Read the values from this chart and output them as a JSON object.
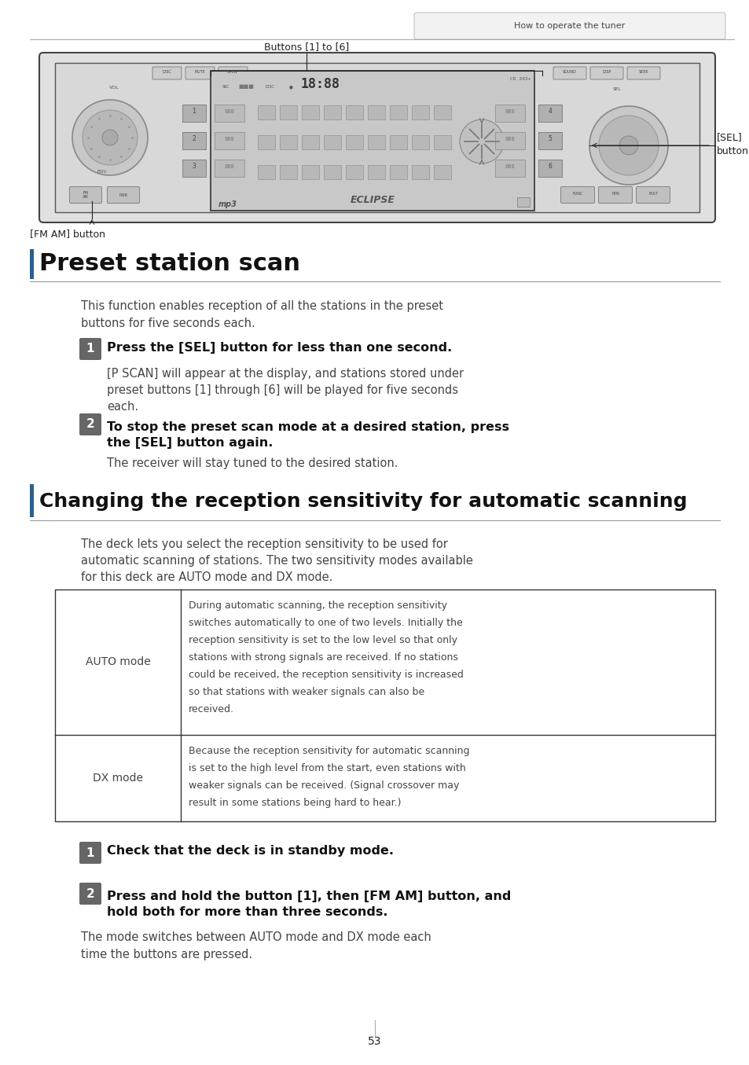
{
  "page_bg": "#ffffff",
  "header_text": "How to operate the tuner",
  "section1_title": "Preset station scan",
  "section1_intro_line1": "This function enables reception of all the stations in the preset",
  "section1_intro_line2": "buttons for five seconds each.",
  "step1_num": "1",
  "step1_bold": "Press the [SEL] button for less than one second.",
  "step1_body_line1": "[P SCAN] will appear at the display, and stations stored under",
  "step1_body_line2": "preset buttons [1] through [6] will be played for five seconds",
  "step1_body_line3": "each.",
  "step2_num": "2",
  "step2_bold_line1": "To stop the preset scan mode at a desired station, press",
  "step2_bold_line2": "the [SEL] button again.",
  "step2_body": "The receiver will stay tuned to the desired station.",
  "section2_title": "Changing the reception sensitivity for automatic scanning",
  "section2_intro_line1": "The deck lets you select the reception sensitivity to be used for",
  "section2_intro_line2": "automatic scanning of stations. The two sensitivity modes available",
  "section2_intro_line3": "for this deck are AUTO mode and DX mode.",
  "table_auto_label": "AUTO mode",
  "table_auto_line1": "During automatic scanning, the reception sensitivity",
  "table_auto_line2": "switches automatically to one of two levels. Initially the",
  "table_auto_line3": "reception sensitivity is set to the low level so that only",
  "table_auto_line4": "stations with strong signals are received. If no stations",
  "table_auto_line5": "could be received, the reception sensitivity is increased",
  "table_auto_line6": "so that stations with weaker signals can also be",
  "table_auto_line7": "received.",
  "table_dx_label": "DX mode",
  "table_dx_line1": "Because the reception sensitivity for automatic scanning",
  "table_dx_line2": "is set to the high level from the start, even stations with",
  "table_dx_line3": "weaker signals can be received. (Signal crossover may",
  "table_dx_line4": "result in some stations being hard to hear.)",
  "step3_num": "1",
  "step3_bold": "Check that the deck is in standby mode.",
  "step4_num": "2",
  "step4_bold_line1": "Press and hold the button [1], then [FM AM] button, and",
  "step4_bold_line2": "hold both for more than three seconds.",
  "step4_body_line1": "The mode switches between AUTO mode and DX mode each",
  "step4_body_line2": "time the buttons are pressed.",
  "page_num": "53",
  "img_label_buttons": "Buttons [1] to [6]",
  "img_label_sel_line1": "[SEL]",
  "img_label_sel_line2": "button",
  "img_label_fmam": "[FM AM] button",
  "bar_color": "#2c5f8a",
  "badge_color": "#666666",
  "text_color": "#222222",
  "light_text": "#444444",
  "header_bg": "#f0f0f0",
  "header_border": "#bbbbbb",
  "table_border": "#333333"
}
